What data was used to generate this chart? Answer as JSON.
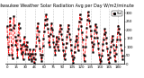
{
  "title": "Milwaukee Weather Solar Radiation Avg per Day W/m2/minute",
  "line_color": "#ff0000",
  "line_style": "--",
  "line_width": 0.6,
  "marker": "s",
  "marker_size": 1.2,
  "marker_color": "#000000",
  "bg_color": "#ffffff",
  "grid_color": "#999999",
  "ylim": [
    0,
    320
  ],
  "ytick_labels": [
    "0",
    "50",
    "100",
    "150",
    "200",
    "250",
    "300"
  ],
  "ytick_values": [
    0,
    50,
    100,
    150,
    200,
    250,
    300
  ],
  "title_fontsize": 3.5,
  "tick_fontsize": 2.8,
  "values": [
    220,
    160,
    100,
    55,
    230,
    270,
    200,
    110,
    55,
    35,
    210,
    280,
    230,
    160,
    110,
    140,
    85,
    40,
    170,
    240,
    210,
    140,
    90,
    60,
    110,
    70,
    28,
    120,
    160,
    105,
    60,
    85,
    130,
    100,
    60,
    28,
    50,
    85,
    60,
    28,
    18,
    60,
    85,
    38,
    8,
    28,
    60,
    105,
    160,
    210,
    240,
    190,
    140,
    90,
    55,
    38,
    18,
    55,
    105,
    150,
    190,
    230,
    260,
    290,
    265,
    235,
    205,
    165,
    130,
    100,
    175,
    210,
    240,
    200,
    165,
    130,
    100,
    80,
    55,
    115,
    160,
    135,
    100,
    80,
    150,
    190,
    230,
    205,
    175,
    145,
    115,
    80,
    48,
    28,
    60,
    95,
    125,
    160,
    190,
    230,
    205,
    175,
    145,
    110,
    80,
    48,
    28,
    8,
    38,
    70,
    100,
    135,
    165,
    145,
    110,
    80,
    205,
    250,
    290,
    265,
    225,
    185,
    145,
    100,
    55,
    18,
    48,
    100,
    160,
    210,
    260,
    305,
    285,
    255,
    225,
    195,
    165,
    130,
    100,
    70,
    115,
    155,
    195,
    235,
    215,
    185,
    155,
    125,
    90,
    55,
    28,
    3,
    18,
    48,
    80,
    115,
    145,
    175,
    205,
    185,
    155,
    125,
    90,
    55,
    28,
    8,
    38,
    70,
    100,
    135,
    165,
    145,
    110,
    80,
    48,
    18,
    60,
    100,
    145,
    185,
    225,
    205,
    175,
    145,
    110,
    80,
    48,
    28
  ],
  "n_grid_lines": 12,
  "legend_label": "Rad"
}
